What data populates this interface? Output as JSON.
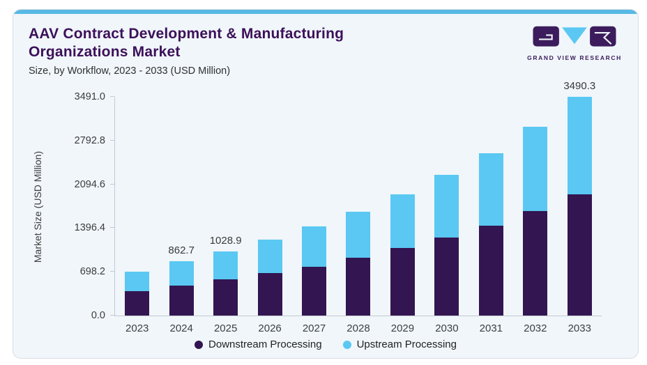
{
  "header": {
    "title": "AAV Contract Development & Manufacturing Organizations Market",
    "subtitle": "Size, by Workflow, 2023 - 2033 (USD Million)",
    "logo_text": "GRAND VIEW RESEARCH"
  },
  "colors": {
    "brand_purple": "#3c1059",
    "bar_downstream": "#331551",
    "bar_upstream": "#5ac8f2",
    "top_strip": "#58b9e4",
    "card_background": "#f0f6fa",
    "axis_line": "#c3c9d2"
  },
  "chart_data": {
    "type": "bar",
    "stacked": true,
    "title": "AAV Contract Development & Manufacturing Organizations Market",
    "subtitle": "Size, by Workflow, 2023 - 2033 (USD Million)",
    "xlabel": "",
    "ylabel": "Market Size (USD Million)",
    "ylim": [
      0,
      3491.0
    ],
    "grid": false,
    "legend_position": "bottom",
    "yticks": [
      {
        "value": 0.0,
        "label": "0.0"
      },
      {
        "value": 698.2,
        "label": "698.2"
      },
      {
        "value": 1396.4,
        "label": "1396.4"
      },
      {
        "value": 2094.6,
        "label": "2094.6"
      },
      {
        "value": 2792.8,
        "label": "2792.8"
      },
      {
        "value": 3491.0,
        "label": "3491.0"
      }
    ],
    "categories": [
      "2023",
      "2024",
      "2025",
      "2026",
      "2027",
      "2028",
      "2029",
      "2030",
      "2031",
      "2032",
      "2033"
    ],
    "series": [
      {
        "name": "Downstream Processing",
        "color": "#331551",
        "values": [
          390,
          478,
          577,
          677,
          777,
          926,
          1075,
          1242,
          1434,
          1667,
          1938
        ]
      },
      {
        "name": "Upstream Processing",
        "color": "#5ac8f2",
        "values": [
          315,
          384.7,
          451.9,
          535,
          642,
          737,
          863,
          1010,
          1162,
          1350,
          1552.3
        ]
      }
    ],
    "totals": [
      705,
      862.7,
      1028.9,
      1212,
      1419,
      1663,
      1938,
      2252,
      2596,
      3017,
      3490.3
    ],
    "bar_labels": [
      "",
      "862.7",
      "1028.9",
      "",
      "",
      "",
      "",
      "",
      "",
      "",
      "3490.3"
    ]
  }
}
